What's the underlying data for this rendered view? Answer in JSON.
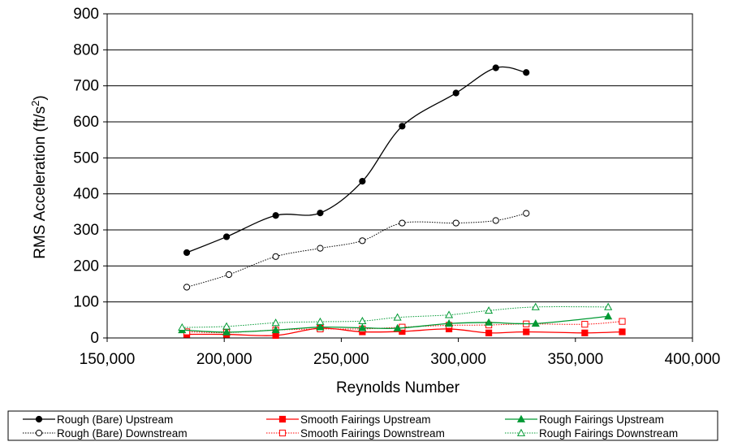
{
  "chart_data": {
    "type": "line",
    "title": "",
    "xlabel": "Reynolds Number",
    "ylabel": "RMS Acceleration (ft/s²)",
    "ylabel_parts": {
      "main": "RMS Acceleration (ft/s",
      "sup": "2",
      "end": ")"
    },
    "xlim": [
      150000,
      400000
    ],
    "ylim": [
      0,
      900
    ],
    "x_ticks": [
      150000,
      200000,
      250000,
      300000,
      350000,
      400000
    ],
    "x_tick_labels": [
      "150,000",
      "200,000",
      "250,000",
      "300,000",
      "350,000",
      "400,000"
    ],
    "y_ticks": [
      0,
      100,
      200,
      300,
      400,
      500,
      600,
      700,
      800,
      900
    ],
    "y_tick_labels": [
      "0",
      "100",
      "200",
      "300",
      "400",
      "500",
      "600",
      "700",
      "800",
      "900"
    ],
    "gridlines": "horizontal",
    "legend_position": "bottom",
    "series": [
      {
        "name": "Rough (Bare) Upstream",
        "color": "#000000",
        "marker": "circle",
        "filled": true,
        "dashed": false,
        "points": [
          [
            184000,
            237
          ],
          [
            201000,
            281
          ],
          [
            222000,
            340
          ],
          [
            241000,
            347
          ],
          [
            259000,
            435
          ],
          [
            276000,
            588
          ],
          [
            299000,
            680
          ],
          [
            316000,
            750
          ],
          [
            329000,
            737
          ]
        ]
      },
      {
        "name": "Rough (Bare) Downstream",
        "color": "#000000",
        "marker": "circle",
        "filled": false,
        "dashed": true,
        "points": [
          [
            184000,
            141
          ],
          [
            202000,
            176
          ],
          [
            222000,
            226
          ],
          [
            241000,
            249
          ],
          [
            259000,
            270
          ],
          [
            276000,
            319
          ],
          [
            299000,
            319
          ],
          [
            316000,
            326
          ],
          [
            329000,
            346
          ]
        ]
      },
      {
        "name": "Smooth Fairings Upstream",
        "color": "#ff0000",
        "marker": "square",
        "filled": true,
        "dashed": false,
        "points": [
          [
            184000,
            10
          ],
          [
            201000,
            10
          ],
          [
            222000,
            7
          ],
          [
            241000,
            27
          ],
          [
            259000,
            17
          ],
          [
            276000,
            18
          ],
          [
            296000,
            25
          ],
          [
            313000,
            14
          ],
          [
            329000,
            17
          ],
          [
            354000,
            14
          ],
          [
            370000,
            17
          ]
        ]
      },
      {
        "name": "Smooth Fairings Downstream",
        "color": "#ff0000",
        "marker": "square",
        "filled": false,
        "dashed": true,
        "points": [
          [
            184000,
            17
          ],
          [
            201000,
            15
          ],
          [
            222000,
            22
          ],
          [
            241000,
            25
          ],
          [
            259000,
            25
          ],
          [
            276000,
            30
          ],
          [
            296000,
            35
          ],
          [
            313000,
            36
          ],
          [
            329000,
            39
          ],
          [
            354000,
            38
          ],
          [
            370000,
            46
          ]
        ]
      },
      {
        "name": "Rough Fairings Upstream",
        "color": "#009933",
        "marker": "triangle",
        "filled": true,
        "dashed": false,
        "points": [
          [
            182000,
            22
          ],
          [
            201000,
            16
          ],
          [
            222000,
            22
          ],
          [
            241000,
            30
          ],
          [
            259000,
            28
          ],
          [
            274000,
            27
          ],
          [
            296000,
            40
          ],
          [
            313000,
            43
          ],
          [
            333000,
            40
          ],
          [
            364000,
            60
          ]
        ]
      },
      {
        "name": "Rough Fairings Downstream",
        "color": "#009933",
        "marker": "triangle",
        "filled": false,
        "dashed": true,
        "points": [
          [
            182000,
            29
          ],
          [
            201000,
            32
          ],
          [
            222000,
            42
          ],
          [
            241000,
            45
          ],
          [
            259000,
            47
          ],
          [
            274000,
            57
          ],
          [
            296000,
            64
          ],
          [
            313000,
            76
          ],
          [
            333000,
            86
          ],
          [
            364000,
            86
          ]
        ]
      }
    ],
    "legend_order": [
      0,
      2,
      4,
      1,
      3,
      5
    ]
  }
}
